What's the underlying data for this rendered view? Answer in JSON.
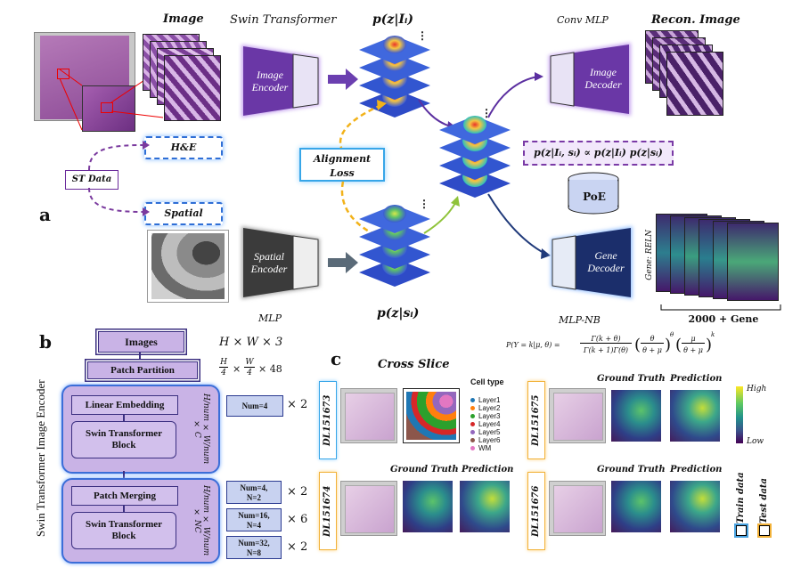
{
  "panel_a": {
    "letter": "a",
    "headers": {
      "image": "Image",
      "swin_transformer": "Swin Transformer",
      "conv_mlp": "Conv MLP",
      "recon_image": "Recon. Image",
      "mlp": "MLP",
      "mlp_nb": "MLP-NB"
    },
    "image_encoder": [
      "Image",
      "Encoder"
    ],
    "spatial_encoder": [
      "Spatial",
      "Encoder"
    ],
    "image_decoder": [
      "Image",
      "Decoder"
    ],
    "gene_decoder": [
      "Gene",
      "Decoder"
    ],
    "he_label": "H&E",
    "spatial_label": "Spatial",
    "st_data_label": "ST Data",
    "alignment_loss": [
      "Alignment",
      "Loss"
    ],
    "poe_label": "PoE",
    "p_z_given_image": "p(z|Iᵢ)",
    "p_z_given_spatial": "p(z|sᵢ)",
    "poe_formula": "p(z|Iᵢ, sᵢ) ∝ p(z|Iᵢ) p(z|sᵢ)",
    "gene_axis_label": "Gene: RELN",
    "gene_count_label": "2000 + Gene",
    "nb_formula": "P(Y = k|μ, θ) = Γ(k+θ) / Γ(k+1)Γ(θ) · (θ/(θ+μ))^θ · (μ/(θ+μ))^k",
    "nb_left": "P(Y = k|μ, θ) =",
    "nb_num": "Γ(k + θ)",
    "nb_den": "Γ(k + 1)Γ(θ)",
    "nb_t1_num": "θ",
    "nb_t1_den": "θ + μ",
    "nb_t2_num": "μ",
    "nb_t2_den": "θ + μ",
    "nb_exp1": "θ",
    "nb_exp2": "k"
  },
  "panel_b": {
    "letter": "b",
    "side_title": "Swin Transformer Image  Encoder",
    "images_box": "Images",
    "patch_partition": "Patch Partition",
    "linear_embedding": "Linear Embedding",
    "swin_block_1": [
      "Swin Transformer",
      "Block"
    ],
    "patch_merging": "Patch Merging",
    "swin_block_2": [
      "Swin Transformer",
      "Block"
    ],
    "dim_hwc": "H × W × 3",
    "dim_patch": "H/4 × W/4 × 48",
    "dim_patch_h": "H",
    "dim_patch_w": "W",
    "dim_patch_4": "4",
    "dim_patch_48": "× 48",
    "dim_vert_1": "H/num × W/num × C",
    "dim_vert_2": "H/num × W/num × NC",
    "num_boxes": [
      "Num=4",
      "Num=4,\nN=2",
      "Num=16,\nN=4",
      "Num=32,\nN=8"
    ],
    "num_box_lines": [
      [
        "Num=4"
      ],
      [
        "Num=4,",
        "N=2"
      ],
      [
        "Num=16,",
        "N=4"
      ],
      [
        "Num=32,",
        "N=8"
      ]
    ],
    "multipliers": [
      "× 2",
      "× 2",
      "× 6",
      "× 2"
    ]
  },
  "panel_c": {
    "letter": "c",
    "title": "Cross Slice",
    "cell_type_title": "Cell type",
    "cell_types": [
      {
        "name": "Layer1",
        "color": "#1f77b4"
      },
      {
        "name": "Layer2",
        "color": "#ff7f0e"
      },
      {
        "name": "Layer3",
        "color": "#2ca02c"
      },
      {
        "name": "Layer4",
        "color": "#d62728"
      },
      {
        "name": "Layer5",
        "color": "#9467bd"
      },
      {
        "name": "Layer6",
        "color": "#8c564b"
      },
      {
        "name": "WM",
        "color": "#e377c2"
      }
    ],
    "slices": [
      "151673",
      "151675",
      "151674",
      "151676"
    ],
    "slice_prefix": "DL",
    "ground_truth": "Ground Truth",
    "prediction": "Prediction",
    "colorbar_high": "High",
    "colorbar_low": "Low",
    "train_data": "Train data",
    "test_data": "Test data",
    "colors": {
      "train": "#4aa3e0",
      "test": "#f2b23a"
    }
  }
}
